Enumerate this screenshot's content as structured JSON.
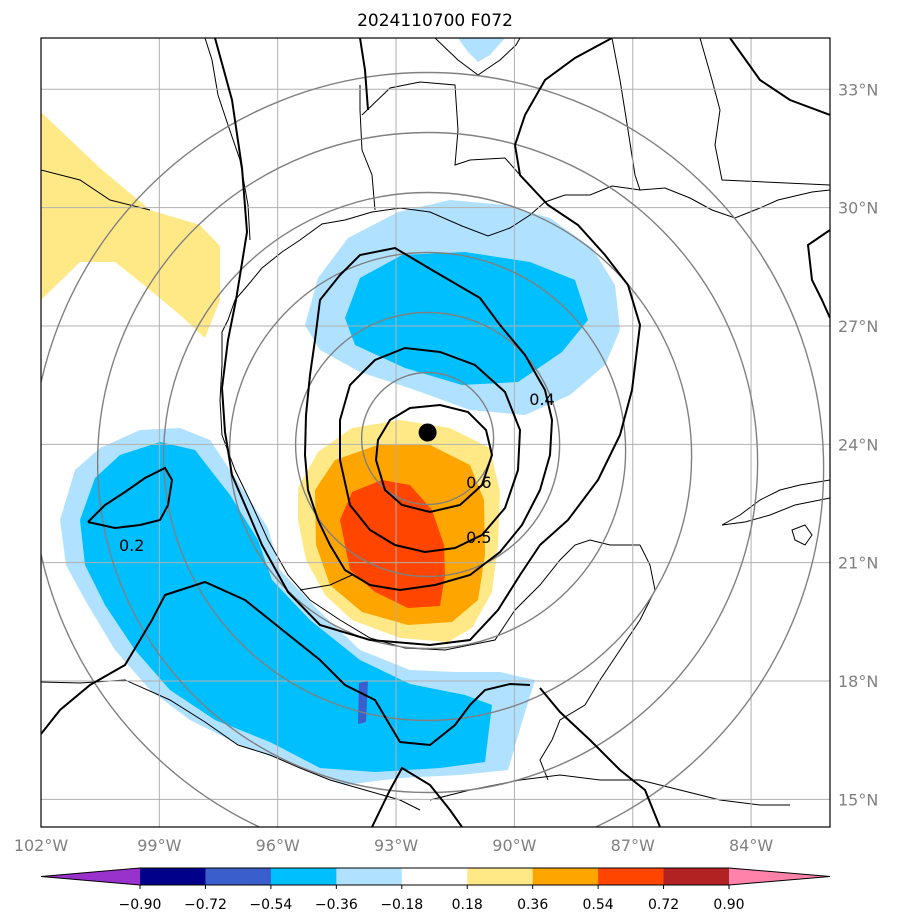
{
  "title": "2024110700 F072",
  "map": {
    "lon_range": [
      -102.0,
      -82.0
    ],
    "lat_range": [
      14.3,
      34.3
    ],
    "lon_ticks": [
      {
        "value": -102,
        "label": "102°W"
      },
      {
        "value": -99,
        "label": "99°W"
      },
      {
        "value": -96,
        "label": "96°W"
      },
      {
        "value": -93,
        "label": "93°W"
      },
      {
        "value": -90,
        "label": "90°W"
      },
      {
        "value": -87,
        "label": "87°W"
      },
      {
        "value": -84,
        "label": "84°W"
      }
    ],
    "lat_ticks": [
      {
        "value": 15,
        "label": "15°N"
      },
      {
        "value": 18,
        "label": "18°N"
      },
      {
        "value": 21,
        "label": "21°N"
      },
      {
        "value": 24,
        "label": "24°N"
      },
      {
        "value": 27,
        "label": "27°N"
      },
      {
        "value": 30,
        "label": "30°N"
      },
      {
        "value": 33,
        "label": "33°N"
      }
    ],
    "storm_center": {
      "lon": -92.2,
      "lat": 24.3
    },
    "range_ring_count": 6,
    "contour_labels": [
      {
        "text": "0.2",
        "lon": -99.7,
        "lat": 21.4
      },
      {
        "text": "0.5",
        "lon": -90.9,
        "lat": 21.6
      },
      {
        "text": "0.6",
        "lon": -90.9,
        "lat": 23.0
      },
      {
        "text": "0.4",
        "lon": -89.3,
        "lat": 25.1
      }
    ]
  },
  "colorbar": {
    "levels": [
      "−0.90",
      "−0.72",
      "−0.54",
      "−0.36",
      "−0.18",
      "0.18",
      "0.36",
      "0.54",
      "0.72",
      "0.90"
    ],
    "colors": [
      "#9932cc",
      "#00008b",
      "#3a5fcd",
      "#00bfff",
      "#b0e2ff",
      "#ffffff",
      "#ffe987",
      "#ffa500",
      "#ff4500",
      "#b22222",
      "#ff82ab"
    ]
  },
  "colors": {
    "pos_low": "#ffe987",
    "pos_mid": "#ffa500",
    "pos_high": "#ff4500",
    "neg_low": "#b0e2ff",
    "neg_mid": "#00bfff",
    "neg_high": "#3a5fcd",
    "grid": "#b0b0b0",
    "ring": "#808080"
  }
}
